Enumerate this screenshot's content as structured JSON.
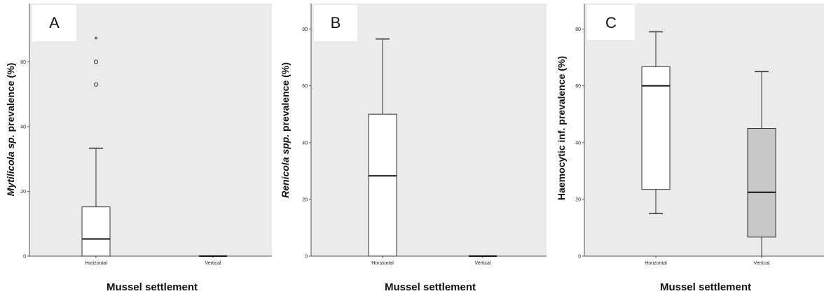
{
  "chart_data": [
    {
      "type": "boxplot",
      "panel_letter": "A",
      "title": "",
      "xlabel": "Mussel settlement",
      "ylabel_italic": "Mytilicola sp.",
      "ylabel_rest": " prevalence (%)",
      "ylim": [
        0,
        78
      ],
      "yticks": [
        0,
        20,
        40,
        60
      ],
      "categories": [
        "Horizontal",
        "Vertical"
      ],
      "boxes": [
        {
          "category": "Horizontal",
          "min": 0,
          "q1": 0,
          "median": 5.3,
          "q3": 15.2,
          "max": 33.3,
          "fill": "#ffffff"
        },
        {
          "category": "Vertical",
          "min": 0,
          "q1": 0,
          "median": 0,
          "q3": 0,
          "max": 0,
          "fill": "#ffffff"
        }
      ],
      "outliers": [
        {
          "category": "Horizontal",
          "value": 53,
          "symbol": "o"
        },
        {
          "category": "Horizontal",
          "value": 60,
          "symbol": "o"
        },
        {
          "category": "Horizontal",
          "value": 67,
          "symbol": "*"
        }
      ]
    },
    {
      "type": "boxplot",
      "panel_letter": "B",
      "title": "",
      "xlabel": "Mussel settlement",
      "ylabel_italic": "Renicola spp.",
      "ylabel_rest": " prevalence (%)",
      "ylim": [
        0,
        89
      ],
      "yticks": [
        0,
        20,
        40,
        60,
        80
      ],
      "categories": [
        "Horizontal",
        "Vertical"
      ],
      "boxes": [
        {
          "category": "Horizontal",
          "min": 0,
          "q1": 0,
          "median": 28.3,
          "q3": 50,
          "max": 76.5,
          "fill": "#ffffff"
        },
        {
          "category": "Vertical",
          "min": 0,
          "q1": 0,
          "median": 0,
          "q3": 0,
          "max": 0,
          "fill": "#ffffff"
        }
      ],
      "outliers": []
    },
    {
      "type": "boxplot",
      "panel_letter": "C",
      "title": "",
      "xlabel": "Mussel settlement",
      "ylabel_italic": "",
      "ylabel_rest": "Haemocytic inf. prevalence (%)",
      "ylim": [
        0,
        89
      ],
      "yticks": [
        0,
        20,
        40,
        60,
        80
      ],
      "categories": [
        "Horizontal",
        "Vertical"
      ],
      "boxes": [
        {
          "category": "Horizontal",
          "min": 15,
          "q1": 23.5,
          "median": 60,
          "q3": 66.7,
          "max": 79,
          "fill": "#ffffff"
        },
        {
          "category": "Vertical",
          "min": 0,
          "q1": 6.7,
          "median": 22.5,
          "q3": 45,
          "max": 65,
          "fill": "#c8c8c8"
        }
      ],
      "outliers": []
    }
  ],
  "colors": {
    "plot_background": "#ebebeb",
    "box_stroke": "#333333",
    "median_line": "#111111",
    "letter_box": "#ffffff"
  }
}
